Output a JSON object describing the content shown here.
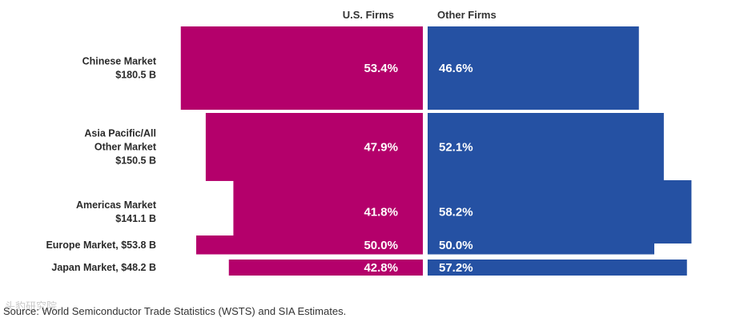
{
  "chart_data": {
    "type": "bar",
    "layout": "diverging-stacked-horizontal",
    "legend": [
      "U.S. Firms",
      "Other Firms"
    ],
    "categories": [
      [
        "Chinese Market",
        "$180.5 B"
      ],
      [
        "Asia Pacific/All",
        "Other Market",
        "$150.5 B"
      ],
      [
        "Americas Market",
        "$141.1 B"
      ],
      [
        "Europe Market, $53.8 B"
      ],
      [
        "Japan Market, $48.2 B"
      ]
    ],
    "market_size_billion": [
      180.5,
      150.5,
      141.1,
      53.8,
      48.2
    ],
    "series": [
      {
        "name": "U.S. Firms",
        "color": "#b4006b",
        "values": [
          53.4,
          47.9,
          41.8,
          50.0,
          42.8
        ],
        "labels": [
          "53.4%",
          "47.9%",
          "41.8%",
          "50.0%",
          "42.8%"
        ]
      },
      {
        "name": "Other Firms",
        "color": "#2551a3",
        "values": [
          46.6,
          52.1,
          58.2,
          50.0,
          57.2
        ],
        "labels": [
          "46.6%",
          "52.1%",
          "58.2%",
          "50.0%",
          "57.2%"
        ]
      }
    ],
    "unit": "%"
  },
  "source": "Source: World Semiconductor Trade Statistics (WSTS) and SIA Estimates.",
  "watermark": "头豹研究院"
}
